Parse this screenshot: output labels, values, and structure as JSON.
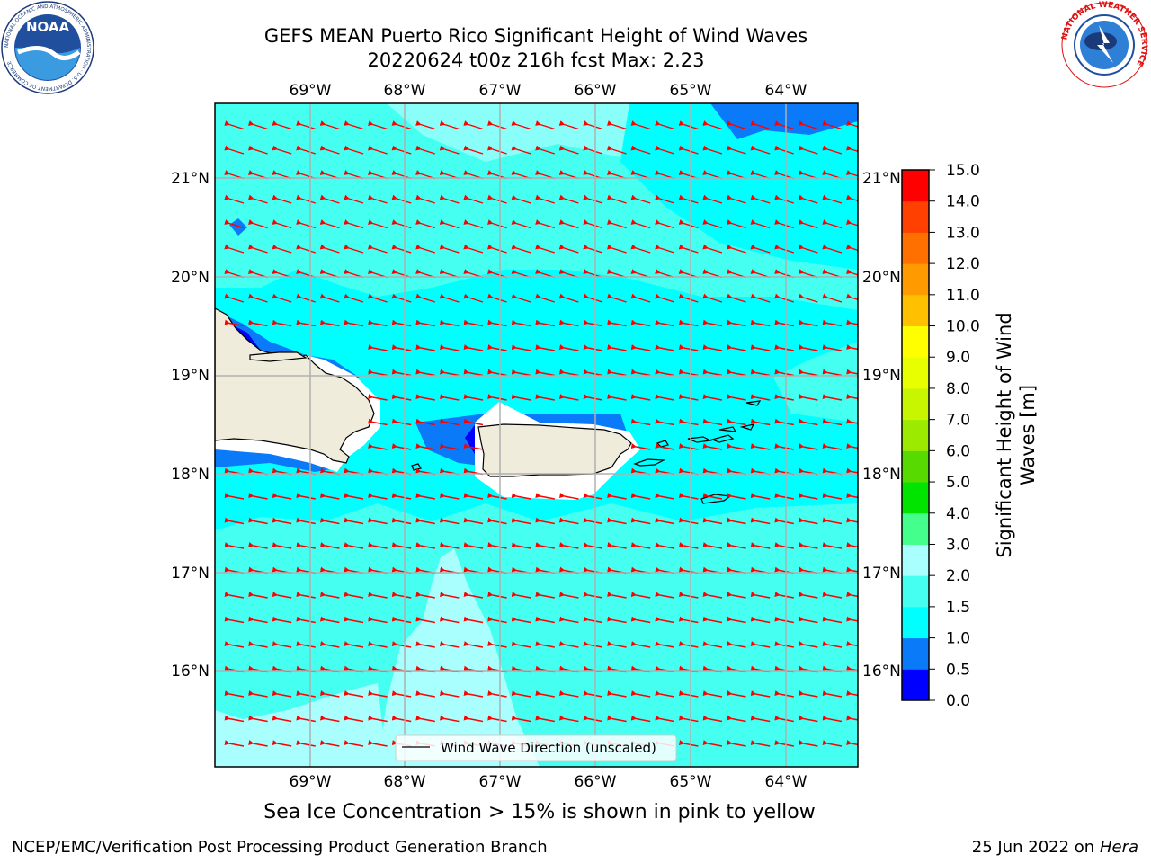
{
  "title": {
    "line1": "GEFS MEAN Puerto Rico Significant Height of Wind Waves",
    "line2": "20220624 t00z 216h fcst   Max: 2.23"
  },
  "map": {
    "lon_labels": [
      "69°W",
      "68°W",
      "67°W",
      "66°W",
      "65°W",
      "64°W"
    ],
    "lat_labels": [
      "21°N",
      "20°N",
      "19°N",
      "18°N",
      "17°N",
      "16°N"
    ],
    "legend_label": "Wind Wave Direction (unscaled)",
    "land_color": "#efecdc",
    "arrow_color": "#ff0000"
  },
  "colorbar": {
    "label_line1": "Significant Height of Wind",
    "label_line2": "Waves [m]",
    "ticks": [
      "0.0",
      "0.5",
      "1.0",
      "1.5",
      "2.0",
      "3.0",
      "4.0",
      "5.0",
      "6.0",
      "7.0",
      "8.0",
      "9.0",
      "10.0",
      "11.0",
      "12.0",
      "13.0",
      "14.0",
      "15.0"
    ],
    "colors": [
      "#0000ff",
      "#0b7af8",
      "#00ffff",
      "#45fff0",
      "#a8fffe",
      "#45ff8c",
      "#00e400",
      "#56da00",
      "#9cea00",
      "#c8f500",
      "#e8ff00",
      "#ffff00",
      "#ffc000",
      "#ff9a00",
      "#ff7000",
      "#ff4000",
      "#ff0000"
    ]
  },
  "note": "Sea Ice Concentration > 15% is shown in pink to yellow",
  "footer": {
    "left": "NCEP/EMC/Verification Post Processing Product Generation Branch",
    "date": "25 Jun 2022 on",
    "machine": "Hera"
  },
  "logos": {
    "noaa": "NOAA",
    "noaa_ring": "NATIONAL OCEANIC AND ATMOSPHERIC ADMINISTRATION · U.S. DEPARTMENT OF COMMERCE",
    "nws": "NATIONAL WEATHER SERVICE"
  }
}
